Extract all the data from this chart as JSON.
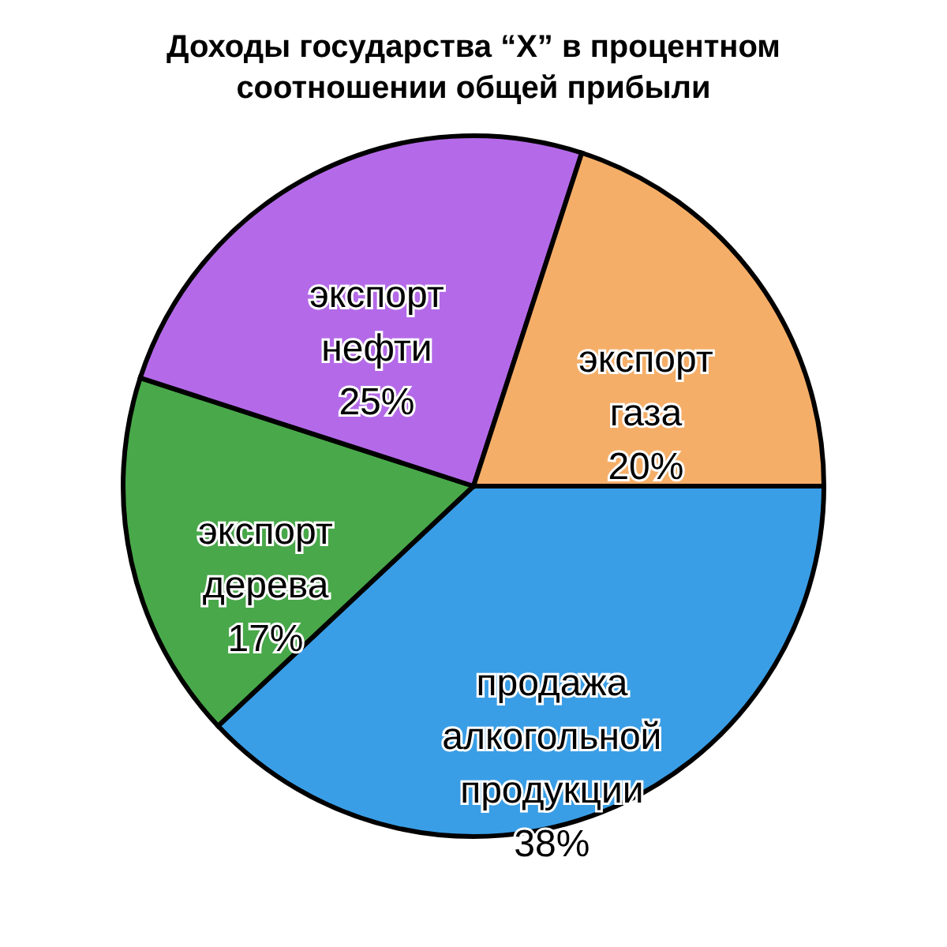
{
  "chart_data": {
    "type": "pie",
    "title": "Доходы государства “X” в процентном\nсоотношении общей прибыли",
    "categories": [
      "продажа\nалкогольной\nпродукции",
      "экспорт\nдерева",
      "экспорт\nнефти",
      "экспорт\nгаза"
    ],
    "values": [
      38,
      17,
      25,
      20
    ],
    "colors": [
      "#3a9ee6",
      "#49a84a",
      "#b46ae8",
      "#f5ae68"
    ],
    "value_labels": [
      "38%",
      "17%",
      "25%",
      "20%"
    ],
    "legend": false
  }
}
